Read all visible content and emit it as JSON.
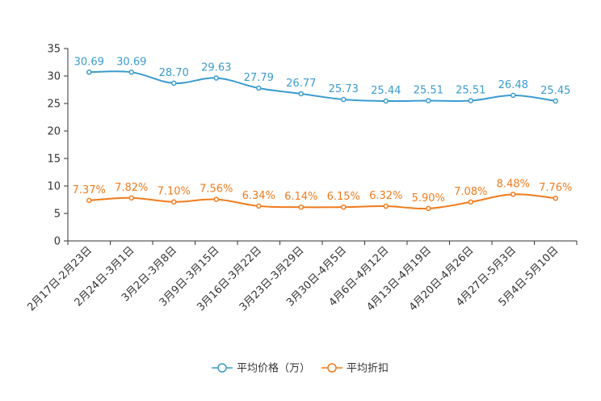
{
  "chart_data": {
    "type": "line",
    "title": "",
    "xlabel": "",
    "ylabel": "",
    "ylim": [
      0,
      35
    ],
    "yticks": [
      0,
      5,
      10,
      15,
      20,
      25,
      30,
      35
    ],
    "grid": false,
    "legend_position": "bottom",
    "categories": [
      "2月17日-2月23日",
      "2月24日-3月1日",
      "3月2日-3月8日",
      "3月9日-3月15日",
      "3月16日-3月22日",
      "3月23日-3月29日",
      "3月30日-4月5日",
      "4月6日-4月12日",
      "4月13日-4月19日",
      "4月20日-4月26日",
      "4月27日-5月3日",
      "5月4日-5月10日"
    ],
    "series": [
      {
        "name": "平均价格（万）",
        "color": "#3a9bcf",
        "values": [
          30.69,
          30.69,
          28.7,
          29.63,
          27.79,
          26.77,
          25.73,
          25.44,
          25.51,
          25.51,
          26.48,
          25.45
        ],
        "labels": [
          "30.69",
          "30.69",
          "28.70",
          "29.63",
          "27.79",
          "26.77",
          "25.73",
          "25.44",
          "25.51",
          "25.51",
          "26.48",
          "25.45"
        ]
      },
      {
        "name": "平均折扣",
        "color": "#f07b1c",
        "values": [
          7.37,
          7.82,
          7.1,
          7.56,
          6.34,
          6.14,
          6.15,
          6.32,
          5.9,
          7.08,
          8.48,
          7.76
        ],
        "labels": [
          "7.37%",
          "7.82%",
          "7.10%",
          "7.56%",
          "6.34%",
          "6.14%",
          "6.15%",
          "6.32%",
          "5.90%",
          "7.08%",
          "8.48%",
          "7.76%"
        ]
      }
    ]
  }
}
